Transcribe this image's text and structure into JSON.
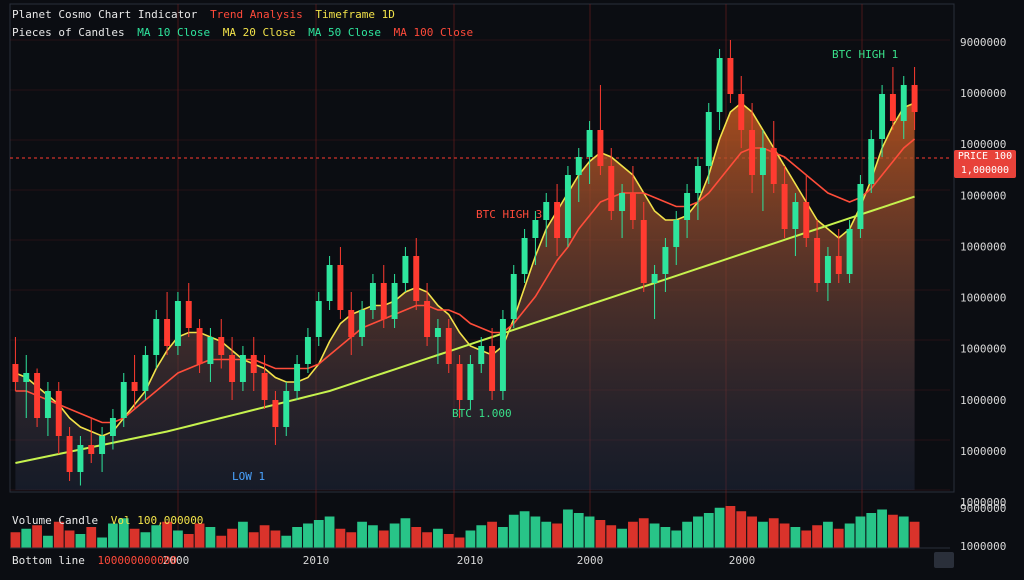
{
  "header": {
    "title": "Planet Cosmo Chart Indicator",
    "title_ext": "Trend Analysis",
    "title_badge": "Timeframe 1D",
    "row2_label": "Pieces of Candles",
    "ma_fast_label": "MA 10 Close",
    "ma_mid_label": "MA 20 Close",
    "ma_slow_label": "MA 50 Close",
    "ma_extra_label": "MA 100 Close"
  },
  "colors": {
    "background": "#0b0d12",
    "up": "#2ee59d",
    "down": "#ff3b30",
    "ma_fast": "#f2e24a",
    "ma_mid": "#ff4d3a",
    "ma_slow": "#c6f24e",
    "area_top": "#c2571f",
    "label_green": "#39e08a",
    "label_red": "#ff4a3a",
    "label_blue": "#4aa3ff",
    "grid_red": "#7a1f1f"
  },
  "annotations": {
    "high_marker": "BTC HIGH 1",
    "mid_marker": "BTC HIGH 3",
    "low_marker": "BTC 1.000",
    "base_marker": "LOW 1",
    "price_tag_line1": "PRICE 100",
    "price_tag_line2": "1,000000"
  },
  "volume_label": "Volume Candle",
  "volume_value": "Vol 100,000000",
  "footer_label": "Bottom line",
  "footer_value": "100000000000",
  "chart_data": {
    "type": "candlestick",
    "x_tick_labels": [
      "2000",
      "2010",
      "2010",
      "2000",
      "2000"
    ],
    "y_tick_labels": [
      "9000000",
      "1000000",
      "1000000",
      "1000000",
      "1000000",
      "1000000",
      "1000000",
      "1000000",
      "1000000",
      "1000000"
    ],
    "ylim": [
      0,
      100
    ],
    "grid": true,
    "ohlc": [
      [
        28,
        34,
        22,
        24
      ],
      [
        24,
        30,
        16,
        26
      ],
      [
        26,
        27,
        14,
        16
      ],
      [
        16,
        24,
        12,
        22
      ],
      [
        22,
        24,
        8,
        12
      ],
      [
        12,
        14,
        2,
        4
      ],
      [
        4,
        12,
        1,
        10
      ],
      [
        10,
        16,
        6,
        8
      ],
      [
        8,
        14,
        4,
        12
      ],
      [
        12,
        18,
        9,
        16
      ],
      [
        16,
        26,
        14,
        24
      ],
      [
        24,
        30,
        18,
        22
      ],
      [
        22,
        32,
        20,
        30
      ],
      [
        30,
        40,
        27,
        38
      ],
      [
        38,
        44,
        30,
        32
      ],
      [
        32,
        44,
        30,
        42
      ],
      [
        42,
        46,
        34,
        36
      ],
      [
        36,
        38,
        26,
        28
      ],
      [
        28,
        36,
        24,
        34
      ],
      [
        34,
        38,
        27,
        30
      ],
      [
        30,
        34,
        20,
        24
      ],
      [
        24,
        32,
        22,
        30
      ],
      [
        30,
        34,
        22,
        26
      ],
      [
        26,
        30,
        18,
        20
      ],
      [
        20,
        22,
        10,
        14
      ],
      [
        14,
        24,
        12,
        22
      ],
      [
        22,
        30,
        20,
        28
      ],
      [
        28,
        36,
        26,
        34
      ],
      [
        34,
        44,
        32,
        42
      ],
      [
        42,
        52,
        40,
        50
      ],
      [
        50,
        54,
        38,
        40
      ],
      [
        40,
        44,
        30,
        34
      ],
      [
        34,
        42,
        32,
        40
      ],
      [
        40,
        48,
        38,
        46
      ],
      [
        46,
        50,
        36,
        38
      ],
      [
        38,
        48,
        36,
        46
      ],
      [
        46,
        54,
        44,
        52
      ],
      [
        52,
        56,
        40,
        42
      ],
      [
        42,
        46,
        32,
        34
      ],
      [
        34,
        38,
        28,
        36
      ],
      [
        36,
        38,
        26,
        28
      ],
      [
        28,
        30,
        16,
        20
      ],
      [
        20,
        30,
        18,
        28
      ],
      [
        28,
        34,
        26,
        32
      ],
      [
        32,
        36,
        20,
        22
      ],
      [
        22,
        40,
        20,
        38
      ],
      [
        38,
        50,
        36,
        48
      ],
      [
        48,
        58,
        46,
        56
      ],
      [
        56,
        62,
        50,
        60
      ],
      [
        60,
        66,
        54,
        64
      ],
      [
        64,
        68,
        52,
        56
      ],
      [
        56,
        72,
        54,
        70
      ],
      [
        70,
        76,
        64,
        74
      ],
      [
        74,
        82,
        68,
        80
      ],
      [
        80,
        90,
        70,
        72
      ],
      [
        72,
        76,
        60,
        62
      ],
      [
        62,
        68,
        56,
        66
      ],
      [
        66,
        72,
        58,
        60
      ],
      [
        60,
        64,
        44,
        46
      ],
      [
        46,
        50,
        38,
        48
      ],
      [
        48,
        56,
        44,
        54
      ],
      [
        54,
        62,
        50,
        60
      ],
      [
        60,
        68,
        56,
        66
      ],
      [
        66,
        74,
        60,
        72
      ],
      [
        72,
        86,
        68,
        84
      ],
      [
        84,
        98,
        80,
        96
      ],
      [
        96,
        100,
        86,
        88
      ],
      [
        88,
        92,
        76,
        80
      ],
      [
        80,
        86,
        66,
        70
      ],
      [
        70,
        80,
        62,
        76
      ],
      [
        76,
        82,
        66,
        68
      ],
      [
        68,
        72,
        56,
        58
      ],
      [
        58,
        66,
        52,
        64
      ],
      [
        64,
        70,
        54,
        56
      ],
      [
        56,
        60,
        44,
        46
      ],
      [
        46,
        54,
        42,
        52
      ],
      [
        52,
        58,
        46,
        48
      ],
      [
        48,
        60,
        46,
        58
      ],
      [
        58,
        70,
        56,
        68
      ],
      [
        68,
        80,
        66,
        78
      ],
      [
        78,
        90,
        74,
        88
      ],
      [
        88,
        94,
        80,
        82
      ],
      [
        82,
        92,
        78,
        90
      ],
      [
        90,
        94,
        80,
        84
      ]
    ],
    "moving_averages": [
      {
        "name": "MA 10",
        "values": [
          26,
          25,
          23,
          21,
          19,
          16,
          14,
          13,
          12,
          13,
          16,
          19,
          22,
          27,
          31,
          34,
          35,
          35,
          34,
          33,
          31,
          29,
          28,
          27,
          25,
          24,
          24,
          25,
          28,
          33,
          37,
          39,
          40,
          41,
          41,
          42,
          44,
          45,
          44,
          41,
          39,
          35,
          32,
          31,
          30,
          32,
          38,
          45,
          52,
          58,
          62,
          66,
          70,
          73,
          75,
          74,
          72,
          70,
          66,
          62,
          60,
          60,
          61,
          64,
          70,
          78,
          84,
          86,
          84,
          80,
          76,
          72,
          68,
          64,
          60,
          58,
          56,
          58,
          63,
          69,
          76,
          81,
          85,
          86
        ]
      },
      {
        "name": "MA 20",
        "values": [
          22,
          22,
          21,
          20,
          19,
          18,
          17,
          16,
          15,
          15,
          16,
          18,
          20,
          22,
          24,
          26,
          27,
          28,
          29,
          29,
          29,
          29,
          29,
          28,
          27,
          27,
          27,
          27,
          28,
          30,
          32,
          34,
          36,
          37,
          38,
          39,
          40,
          41,
          41,
          40,
          40,
          39,
          37,
          36,
          35,
          35,
          37,
          40,
          43,
          47,
          51,
          54,
          58,
          61,
          64,
          65,
          66,
          66,
          66,
          65,
          64,
          63,
          63,
          64,
          66,
          69,
          72,
          75,
          76,
          76,
          75,
          74,
          72,
          70,
          68,
          66,
          65,
          64,
          65,
          67,
          70,
          73,
          76,
          78
        ]
      },
      {
        "name": "MA 50",
        "values": [
          6,
          6.5,
          7,
          7.5,
          8,
          8.5,
          9,
          9.5,
          10,
          10.5,
          11,
          11.5,
          12,
          12.5,
          13,
          13.6,
          14.2,
          14.8,
          15.4,
          16,
          16.6,
          17.2,
          17.8,
          18.4,
          19,
          19.6,
          20.2,
          20.8,
          21.4,
          22,
          22.8,
          23.6,
          24.4,
          25.2,
          26,
          26.8,
          27.6,
          28.4,
          29.2,
          30,
          30.8,
          31.6,
          32.4,
          33.2,
          34,
          34.8,
          35.6,
          36.4,
          37.2,
          38,
          38.8,
          39.6,
          40.4,
          41.2,
          42,
          42.8,
          43.6,
          44.4,
          45.2,
          46,
          46.8,
          47.6,
          48.4,
          49.2,
          50,
          50.8,
          51.6,
          52.4,
          53.2,
          54,
          54.8,
          55.6,
          56.4,
          57.2,
          58,
          58.8,
          59.6,
          60.4,
          61.2,
          62,
          62.8,
          63.6,
          64.4,
          65.2
        ]
      }
    ],
    "volume": [
      18,
      22,
      26,
      14,
      30,
      20,
      16,
      24,
      12,
      28,
      34,
      22,
      18,
      26,
      30,
      20,
      16,
      28,
      24,
      14,
      22,
      30,
      18,
      26,
      20,
      14,
      24,
      28,
      32,
      36,
      22,
      18,
      30,
      26,
      20,
      28,
      34,
      24,
      18,
      22,
      16,
      12,
      20,
      26,
      30,
      24,
      38,
      42,
      36,
      30,
      28,
      44,
      40,
      36,
      32,
      26,
      22,
      30,
      34,
      28,
      24,
      20,
      30,
      36,
      40,
      46,
      48,
      42,
      36,
      30,
      34,
      28,
      24,
      20,
      26,
      30,
      22,
      28,
      36,
      40,
      44,
      38,
      36,
      30
    ]
  }
}
